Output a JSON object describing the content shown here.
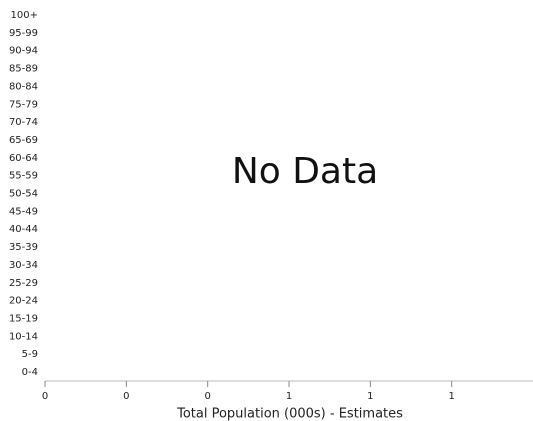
{
  "chart_data": {
    "type": "bar",
    "orientation": "horizontal",
    "annotation": "No Data",
    "x_label": "Total Population (000s) - Estimates",
    "categories": [
      "0-4",
      "5-9",
      "10-14",
      "15-19",
      "20-24",
      "25-29",
      "30-34",
      "35-39",
      "40-44",
      "45-49",
      "50-54",
      "55-59",
      "60-64",
      "65-69",
      "70-74",
      "75-79",
      "80-84",
      "85-89",
      "90-94",
      "95-99",
      "100+"
    ],
    "xlim": [
      0,
      1.2
    ],
    "xticks": [
      0,
      {
        "value": 0.2,
        "label": "0"
      },
      {
        "value": 0.4,
        "label": "0"
      },
      {
        "value": 0.6,
        "label": "1"
      },
      {
        "value": 0.8,
        "label": "1"
      },
      {
        "value": 1.0,
        "label": "1"
      }
    ]
  }
}
